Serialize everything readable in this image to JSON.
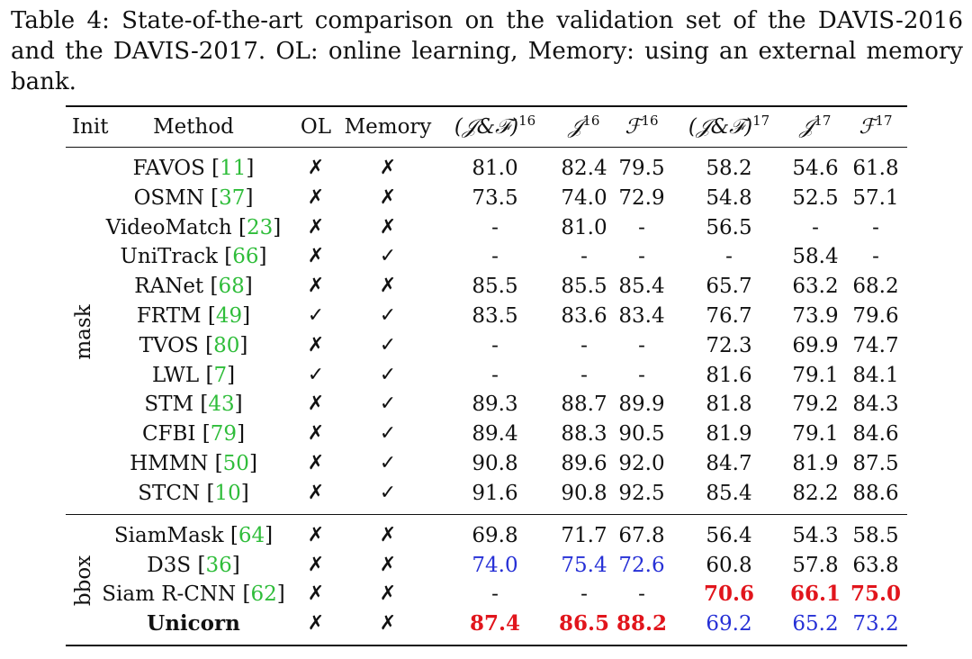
{
  "caption": "Table 4: State-of-the-art comparison on the validation set of the DAVIS-2016 and the DAVIS-2017. OL: online learning, Memory: using an external memory bank.",
  "headers": {
    "init": "Init",
    "method": "Method",
    "ol": "OL",
    "memory": "Memory",
    "jf16": "(𝒥&ℱ)",
    "jf16_sup": "16",
    "j16": "𝒥",
    "j16_sup": "16",
    "f16": "ℱ",
    "f16_sup": "16",
    "jf17": "(𝒥&ℱ)",
    "jf17_sup": "17",
    "j17": "𝒥",
    "j17_sup": "17",
    "f17": "ℱ",
    "f17_sup": "17"
  },
  "marks": {
    "yes": "✓",
    "no": "✗"
  },
  "highlight_colors": {
    "best": "#e1151c",
    "second": "#2630d6",
    "citation": "#2fbd3a"
  },
  "groups": [
    {
      "name": "mask",
      "rows": [
        {
          "method": "FAVOS",
          "ref": "11",
          "ol": "no",
          "memory": "no",
          "vals": [
            "81.0",
            "82.4",
            "79.5",
            "58.2",
            "54.6",
            "61.8"
          ]
        },
        {
          "method": "OSMN",
          "ref": "37",
          "ol": "no",
          "memory": "no",
          "vals": [
            "73.5",
            "74.0",
            "72.9",
            "54.8",
            "52.5",
            "57.1"
          ]
        },
        {
          "method": "VideoMatch",
          "ref": "23",
          "ol": "no",
          "memory": "no",
          "vals": [
            "-",
            "81.0",
            "-",
            "56.5",
            "-",
            "-"
          ]
        },
        {
          "method": "UniTrack",
          "ref": "66",
          "ol": "no",
          "memory": "yes",
          "vals": [
            "-",
            "-",
            "-",
            "-",
            "58.4",
            "-"
          ]
        },
        {
          "method": "RANet",
          "ref": "68",
          "ol": "no",
          "memory": "no",
          "vals": [
            "85.5",
            "85.5",
            "85.4",
            "65.7",
            "63.2",
            "68.2"
          ]
        },
        {
          "method": "FRTM",
          "ref": "49",
          "ol": "yes",
          "memory": "yes",
          "vals": [
            "83.5",
            "83.6",
            "83.4",
            "76.7",
            "73.9",
            "79.6"
          ]
        },
        {
          "method": "TVOS",
          "ref": "80",
          "ol": "no",
          "memory": "yes",
          "vals": [
            "-",
            "-",
            "-",
            "72.3",
            "69.9",
            "74.7"
          ]
        },
        {
          "method": "LWL",
          "ref": "7",
          "ol": "yes",
          "memory": "yes",
          "vals": [
            "-",
            "-",
            "-",
            "81.6",
            "79.1",
            "84.1"
          ]
        },
        {
          "method": "STM",
          "ref": "43",
          "ol": "no",
          "memory": "yes",
          "vals": [
            "89.3",
            "88.7",
            "89.9",
            "81.8",
            "79.2",
            "84.3"
          ]
        },
        {
          "method": "CFBI",
          "ref": "79",
          "ol": "no",
          "memory": "yes",
          "vals": [
            "89.4",
            "88.3",
            "90.5",
            "81.9",
            "79.1",
            "84.6"
          ]
        },
        {
          "method": "HMMN",
          "ref": "50",
          "ol": "no",
          "memory": "yes",
          "vals": [
            "90.8",
            "89.6",
            "92.0",
            "84.7",
            "81.9",
            "87.5"
          ]
        },
        {
          "method": "STCN",
          "ref": "10",
          "ol": "no",
          "memory": "yes",
          "vals": [
            "91.6",
            "90.8",
            "92.5",
            "85.4",
            "82.2",
            "88.6"
          ]
        }
      ]
    },
    {
      "name": "bbox",
      "rows": [
        {
          "method": "SiamMask",
          "ref": "64",
          "ol": "no",
          "memory": "no",
          "vals": [
            "69.8",
            "71.7",
            "67.8",
            "56.4",
            "54.3",
            "58.5"
          ]
        },
        {
          "method": "D3S",
          "ref": "36",
          "ol": "no",
          "memory": "no",
          "vals": [
            "74.0",
            "75.4",
            "72.6",
            "60.8",
            "57.8",
            "63.8"
          ],
          "styles": [
            "blue",
            "blue",
            "blue",
            "",
            "",
            ""
          ]
        },
        {
          "method": "Siam R-CNN",
          "ref": "62",
          "ol": "no",
          "memory": "no",
          "vals": [
            "-",
            "-",
            "-",
            "70.6",
            "66.1",
            "75.0"
          ],
          "styles": [
            "",
            "",
            "",
            "red",
            "red",
            "red"
          ]
        },
        {
          "method": "Unicorn",
          "ref": "",
          "bold": true,
          "ol": "no",
          "memory": "no",
          "vals": [
            "87.4",
            "86.5",
            "88.2",
            "69.2",
            "65.2",
            "73.2"
          ],
          "styles": [
            "red",
            "red",
            "red",
            "blue",
            "blue",
            "blue"
          ]
        }
      ]
    }
  ]
}
